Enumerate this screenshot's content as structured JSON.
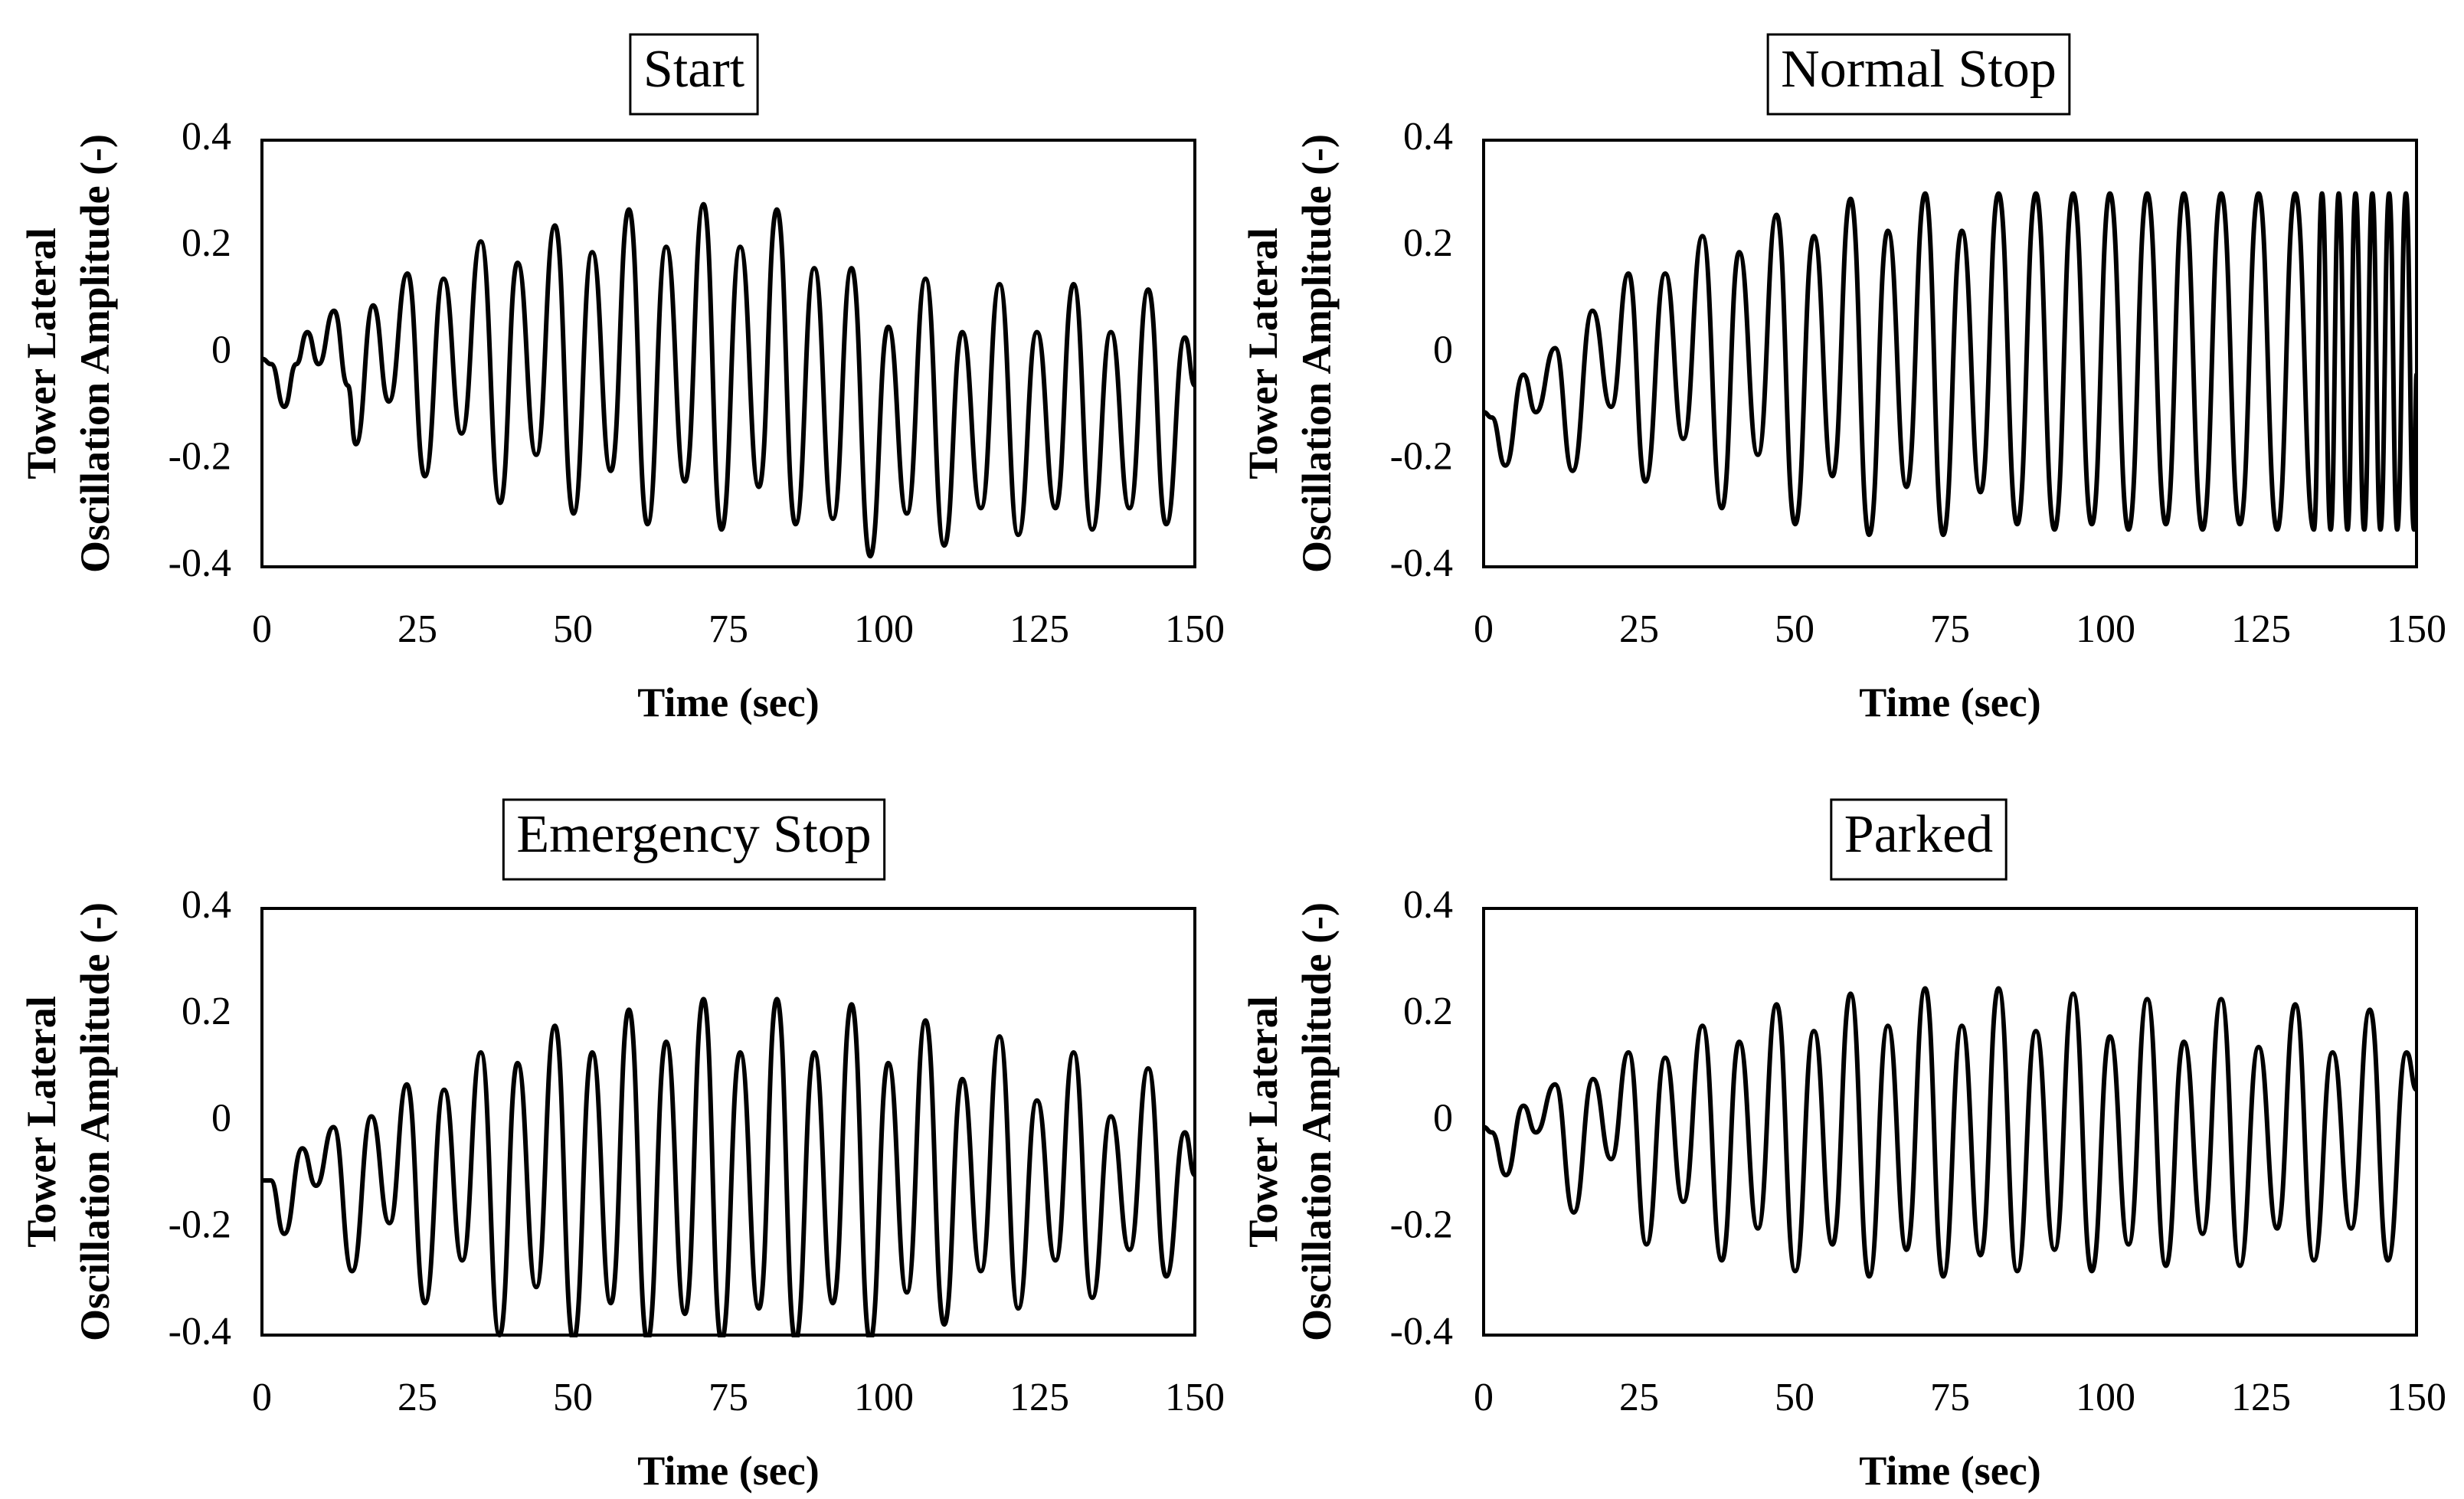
{
  "chart_data": [
    {
      "type": "line",
      "title": "Start",
      "xlabel": "Time (sec)",
      "ylabel": [
        "Tower Lateral",
        "Oscillation Amplitude (-)"
      ],
      "xlim": [
        0,
        150
      ],
      "ylim": [
        -0.4,
        0.4
      ],
      "xticks": [
        "0",
        "25",
        "50",
        "75",
        "100",
        "125",
        "150"
      ],
      "yticks": [
        "0.4",
        "0.2",
        "0",
        "-0.2",
        "-0.4"
      ],
      "series": [
        {
          "name": "Tower lateral oscillation amplitude",
          "x": [
            0,
            1.5,
            3.6,
            5.5,
            7.3,
            9.1,
            11.6,
            13.8,
            15.1,
            17.9,
            20.4,
            23.4,
            26.2,
            29.2,
            32.1,
            35.2,
            38.3,
            41.1,
            44.1,
            47.1,
            50.1,
            53.1,
            56.1,
            59.0,
            62.0,
            65.0,
            68.0,
            71.0,
            73.9,
            76.9,
            79.9,
            82.8,
            85.8,
            88.8,
            91.8,
            94.8,
            97.8,
            100.7,
            103.7,
            106.7,
            109.7,
            112.6,
            115.6,
            118.6,
            121.6,
            124.6,
            127.6,
            130.5,
            133.5,
            136.5,
            139.5,
            142.5,
            145.4,
            148.4,
            150.0
          ],
          "y": [
            -0.01,
            -0.02,
            -0.1,
            -0.02,
            0.04,
            -0.02,
            0.08,
            -0.06,
            -0.17,
            0.09,
            -0.09,
            0.15,
            -0.23,
            0.14,
            -0.15,
            0.21,
            -0.28,
            0.17,
            -0.19,
            0.24,
            -0.3,
            0.19,
            -0.22,
            0.27,
            -0.32,
            0.2,
            -0.24,
            0.28,
            -0.33,
            0.2,
            -0.25,
            0.27,
            -0.32,
            0.16,
            -0.31,
            0.16,
            -0.38,
            0.05,
            -0.3,
            0.14,
            -0.36,
            0.04,
            -0.29,
            0.13,
            -0.34,
            0.04,
            -0.29,
            0.13,
            -0.33,
            0.04,
            -0.29,
            0.12,
            -0.32,
            0.03,
            -0.06
          ]
        }
      ]
    },
    {
      "type": "line",
      "title": "Normal Stop",
      "xlabel": "Time (sec)",
      "ylabel": [
        "Tower Lateral",
        "Oscillation Amplitude (-)"
      ],
      "xlim": [
        0,
        150
      ],
      "ylim": [
        -0.4,
        0.4
      ],
      "xticks": [
        "0",
        "25",
        "50",
        "75",
        "100",
        "125",
        "150"
      ],
      "yticks": [
        "0.4",
        "0.2",
        "0",
        "-0.2",
        "-0.4"
      ],
      "series": [
        {
          "name": "Tower lateral oscillation amplitude",
          "x": [
            0,
            1.3,
            3.5,
            6.4,
            8.4,
            11.5,
            14.3,
            17.5,
            20.5,
            23.3,
            26.0,
            29.2,
            32.1,
            35.2,
            38.3,
            41.1,
            44.1,
            47.1,
            50.1,
            53.1,
            56.1,
            59.0,
            62.0,
            65.0,
            68.0,
            71.0,
            73.9,
            76.9,
            79.9,
            82.8,
            85.8,
            88.8,
            91.8,
            94.8,
            97.8,
            100.7,
            103.7,
            106.7,
            109.7,
            112.6,
            115.6,
            118.6,
            121.6,
            124.6,
            127.6,
            130.5,
            133.5,
            134.8,
            136.2,
            137.5,
            138.9,
            140.2,
            141.6,
            142.9,
            144.2,
            145.6,
            146.9,
            148.3,
            149.6,
            150.0
          ],
          "y": [
            -0.11,
            -0.12,
            -0.21,
            -0.04,
            -0.11,
            0.01,
            -0.22,
            0.08,
            -0.1,
            0.15,
            -0.24,
            0.15,
            -0.16,
            0.22,
            -0.29,
            0.19,
            -0.19,
            0.26,
            -0.32,
            0.22,
            -0.23,
            0.29,
            -0.34,
            0.23,
            -0.25,
            0.3,
            -0.34,
            0.23,
            -0.26,
            0.3,
            -0.32,
            0.3,
            -0.33,
            0.3,
            -0.32,
            0.3,
            -0.33,
            0.3,
            -0.32,
            0.3,
            -0.33,
            0.3,
            -0.32,
            0.3,
            -0.33,
            0.3,
            -0.33,
            0.3,
            -0.33,
            0.3,
            -0.33,
            0.3,
            -0.33,
            0.3,
            -0.33,
            0.3,
            -0.33,
            0.3,
            -0.33,
            -0.04
          ]
        }
      ]
    },
    {
      "type": "line",
      "title": "Emergency Stop",
      "xlabel": "Time (sec)",
      "ylabel": [
        "Tower Lateral",
        "Oscillation Amplitude (-)"
      ],
      "xlim": [
        0,
        150
      ],
      "ylim": [
        -0.4,
        0.4
      ],
      "xticks": [
        "0",
        "25",
        "50",
        "75",
        "100",
        "125",
        "150"
      ],
      "yticks": [
        "0.4",
        "0.2",
        "0",
        "-0.2",
        "-0.4"
      ],
      "series": [
        {
          "name": "Tower lateral oscillation amplitude",
          "x": [
            0,
            1.4,
            3.6,
            6.5,
            8.7,
            11.5,
            14.5,
            17.6,
            20.5,
            23.3,
            26.2,
            29.3,
            32.2,
            35.2,
            38.2,
            41.1,
            44.1,
            47.1,
            50.1,
            53.1,
            56.1,
            59.0,
            62.0,
            65.0,
            68.0,
            71.0,
            73.9,
            76.9,
            79.9,
            82.8,
            85.8,
            88.8,
            91.8,
            94.8,
            97.8,
            100.7,
            103.7,
            106.7,
            109.7,
            112.6,
            115.6,
            118.6,
            121.6,
            124.6,
            127.6,
            130.5,
            133.5,
            136.5,
            139.5,
            142.5,
            145.4,
            148.4,
            150.0
          ],
          "y": [
            -0.11,
            -0.11,
            -0.21,
            -0.05,
            -0.12,
            -0.01,
            -0.28,
            0.01,
            -0.19,
            0.07,
            -0.34,
            0.06,
            -0.26,
            0.13,
            -0.4,
            0.11,
            -0.31,
            0.18,
            -0.41,
            0.13,
            -0.34,
            0.21,
            -0.41,
            0.15,
            -0.36,
            0.23,
            -0.41,
            0.13,
            -0.35,
            0.23,
            -0.41,
            0.13,
            -0.34,
            0.22,
            -0.41,
            0.11,
            -0.32,
            0.19,
            -0.38,
            0.08,
            -0.28,
            0.16,
            -0.35,
            0.04,
            -0.26,
            0.13,
            -0.33,
            0.01,
            -0.24,
            0.1,
            -0.29,
            -0.02,
            -0.1
          ]
        }
      ]
    },
    {
      "type": "line",
      "title": "Parked",
      "xlabel": "Time (sec)",
      "ylabel": [
        "Tower Lateral",
        "Oscillation Amplitude (-)"
      ],
      "xlim": [
        0,
        150
      ],
      "ylim": [
        -0.4,
        0.4
      ],
      "xticks": [
        "0",
        "25",
        "50",
        "75",
        "100",
        "125",
        "150"
      ],
      "yticks": [
        "0.4",
        "0.2",
        "0",
        "-0.2",
        "-0.4"
      ],
      "series": [
        {
          "name": "Tower lateral oscillation amplitude",
          "x": [
            0,
            1.3,
            3.6,
            6.4,
            8.4,
            11.5,
            14.5,
            17.6,
            20.5,
            23.3,
            26.2,
            29.2,
            32.1,
            35.2,
            38.3,
            41.1,
            44.1,
            47.1,
            50.1,
            53.1,
            56.1,
            59.0,
            62.0,
            65.0,
            68.0,
            71.0,
            73.9,
            76.9,
            79.9,
            82.8,
            85.8,
            88.8,
            91.8,
            94.8,
            97.8,
            100.7,
            103.7,
            106.7,
            109.7,
            112.6,
            115.6,
            118.6,
            121.6,
            124.6,
            127.6,
            130.5,
            133.5,
            136.5,
            139.5,
            142.5,
            145.4,
            148.4,
            150.0
          ],
          "y": [
            -0.01,
            -0.02,
            -0.1,
            0.03,
            -0.02,
            0.07,
            -0.17,
            0.08,
            -0.07,
            0.13,
            -0.23,
            0.12,
            -0.15,
            0.18,
            -0.26,
            0.15,
            -0.2,
            0.22,
            -0.28,
            0.17,
            -0.23,
            0.24,
            -0.29,
            0.18,
            -0.24,
            0.25,
            -0.29,
            0.18,
            -0.25,
            0.25,
            -0.28,
            0.17,
            -0.24,
            0.24,
            -0.28,
            0.16,
            -0.23,
            0.23,
            -0.27,
            0.15,
            -0.21,
            0.23,
            -0.27,
            0.14,
            -0.2,
            0.22,
            -0.26,
            0.13,
            -0.2,
            0.21,
            -0.26,
            0.13,
            0.06
          ]
        }
      ]
    }
  ]
}
